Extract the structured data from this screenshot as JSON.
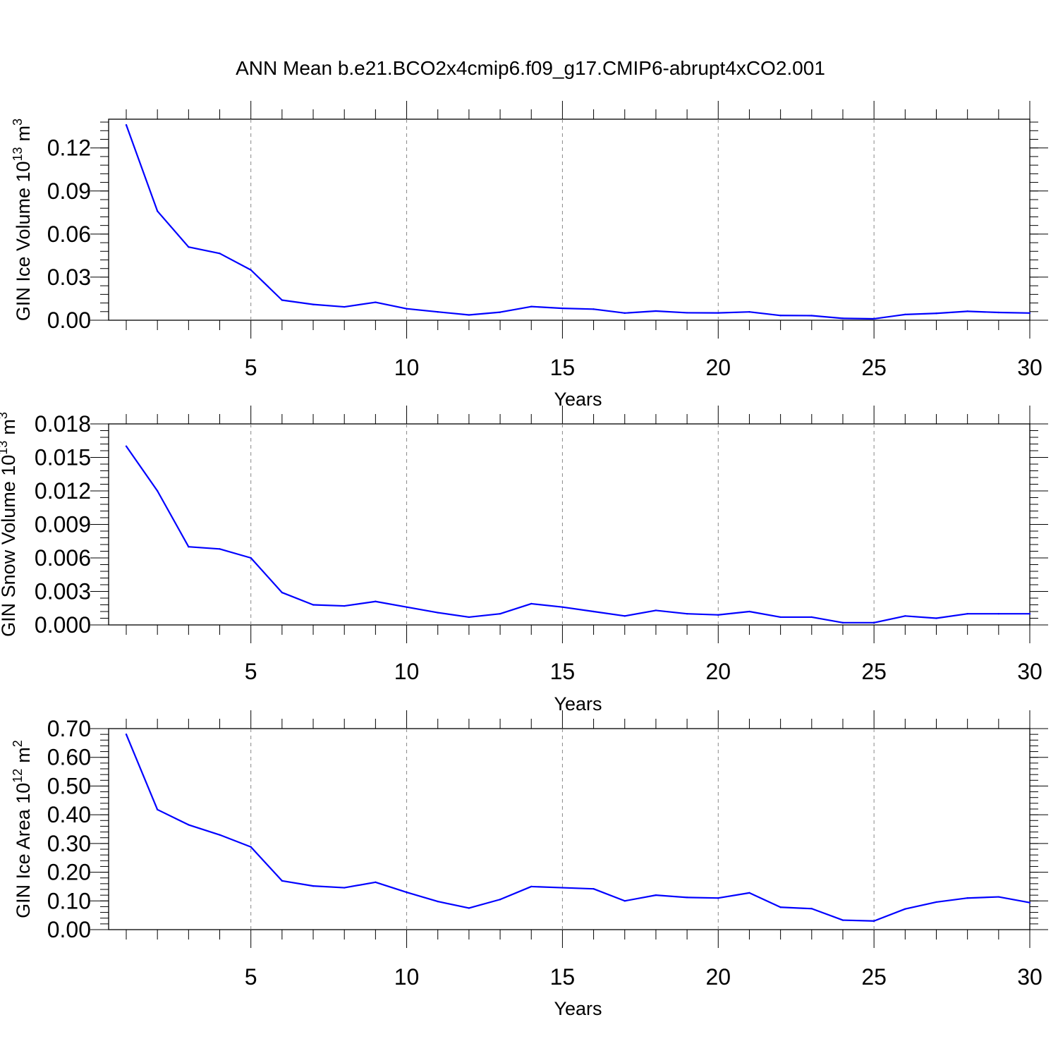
{
  "title": "ANN Mean b.e21.BCO2x4cmip6.f09_g17.CMIP6-abrupt4xCO2.001",
  "line_color": "#0000ff",
  "chart_data": [
    {
      "type": "line",
      "ylabel_main": "GIN Ice Volume 10",
      "ylabel_exp": "13",
      "ylabel_unit": "m",
      "ylabel_unit_exp": "3",
      "xlabel": "Years",
      "xlim": [
        1,
        30
      ],
      "ylim": [
        0,
        0.14
      ],
      "xticks": [
        5,
        10,
        15,
        20,
        25,
        30
      ],
      "xtick_labels": [
        "5",
        "10",
        "15",
        "20",
        "25",
        "30"
      ],
      "yticks": [
        0,
        0.03,
        0.06,
        0.09,
        0.12
      ],
      "ytick_labels": [
        "0.00",
        "0.03",
        "0.06",
        "0.09",
        "0.12"
      ],
      "yminor_step": 0.006,
      "x": [
        1,
        2,
        3,
        4,
        5,
        6,
        7,
        8,
        9,
        10,
        11,
        12,
        13,
        14,
        15,
        16,
        17,
        18,
        19,
        20,
        21,
        22,
        23,
        24,
        25,
        26,
        27,
        28,
        29,
        30
      ],
      "values": [
        0.136,
        0.076,
        0.051,
        0.0465,
        0.035,
        0.014,
        0.011,
        0.0093,
        0.0125,
        0.008,
        0.0058,
        0.0037,
        0.0056,
        0.0095,
        0.0083,
        0.0077,
        0.005,
        0.0064,
        0.0052,
        0.0051,
        0.0058,
        0.0033,
        0.0032,
        0.0013,
        0.001,
        0.004,
        0.0048,
        0.0062,
        0.0054,
        0.005
      ]
    },
    {
      "type": "line",
      "ylabel_main": "GIN Snow Volume 10",
      "ylabel_exp": "13",
      "ylabel_unit": "m",
      "ylabel_unit_exp": "3",
      "xlabel": "Years",
      "xlim": [
        1,
        30
      ],
      "ylim": [
        0,
        0.018
      ],
      "xticks": [
        5,
        10,
        15,
        20,
        25,
        30
      ],
      "xtick_labels": [
        "5",
        "10",
        "15",
        "20",
        "25",
        "30"
      ],
      "yticks": [
        0,
        0.003,
        0.006,
        0.009,
        0.012,
        0.015,
        0.018
      ],
      "ytick_labels": [
        "0.000",
        "0.003",
        "0.006",
        "0.009",
        "0.012",
        "0.015",
        "0.018"
      ],
      "yminor_step": 0.0006,
      "x": [
        1,
        2,
        3,
        4,
        5,
        6,
        7,
        8,
        9,
        10,
        11,
        12,
        13,
        14,
        15,
        16,
        17,
        18,
        19,
        20,
        21,
        22,
        23,
        24,
        25,
        26,
        27,
        28,
        29,
        30
      ],
      "values": [
        0.016,
        0.012,
        0.007,
        0.0068,
        0.006,
        0.0029,
        0.0018,
        0.0017,
        0.0021,
        0.0016,
        0.0011,
        0.0007,
        0.001,
        0.0019,
        0.0016,
        0.0012,
        0.0008,
        0.0013,
        0.001,
        0.0009,
        0.0012,
        0.0007,
        0.0007,
        0.0002,
        0.0002,
        0.0008,
        0.0006,
        0.001,
        0.001,
        0.001
      ]
    },
    {
      "type": "line",
      "ylabel_main": "GIN Ice Area 10",
      "ylabel_exp": "12",
      "ylabel_unit": "m",
      "ylabel_unit_exp": "2",
      "xlabel": "Years",
      "xlim": [
        1,
        30
      ],
      "ylim": [
        0,
        0.7
      ],
      "xticks": [
        5,
        10,
        15,
        20,
        25,
        30
      ],
      "xtick_labels": [
        "5",
        "10",
        "15",
        "20",
        "25",
        "30"
      ],
      "yticks": [
        0,
        0.1,
        0.2,
        0.3,
        0.4,
        0.5,
        0.6,
        0.7
      ],
      "ytick_labels": [
        "0.00",
        "0.10",
        "0.20",
        "0.30",
        "0.40",
        "0.50",
        "0.60",
        "0.70"
      ],
      "yminor_step": 0.02,
      "x": [
        1,
        2,
        3,
        4,
        5,
        6,
        7,
        8,
        9,
        10,
        11,
        12,
        13,
        14,
        15,
        16,
        17,
        18,
        19,
        20,
        21,
        22,
        23,
        24,
        25,
        26,
        27,
        28,
        29,
        30
      ],
      "values": [
        0.68,
        0.418,
        0.365,
        0.33,
        0.288,
        0.17,
        0.152,
        0.146,
        0.165,
        0.13,
        0.098,
        0.075,
        0.105,
        0.15,
        0.146,
        0.142,
        0.1,
        0.12,
        0.112,
        0.11,
        0.128,
        0.078,
        0.073,
        0.033,
        0.03,
        0.072,
        0.096,
        0.11,
        0.114,
        0.094
      ]
    }
  ]
}
